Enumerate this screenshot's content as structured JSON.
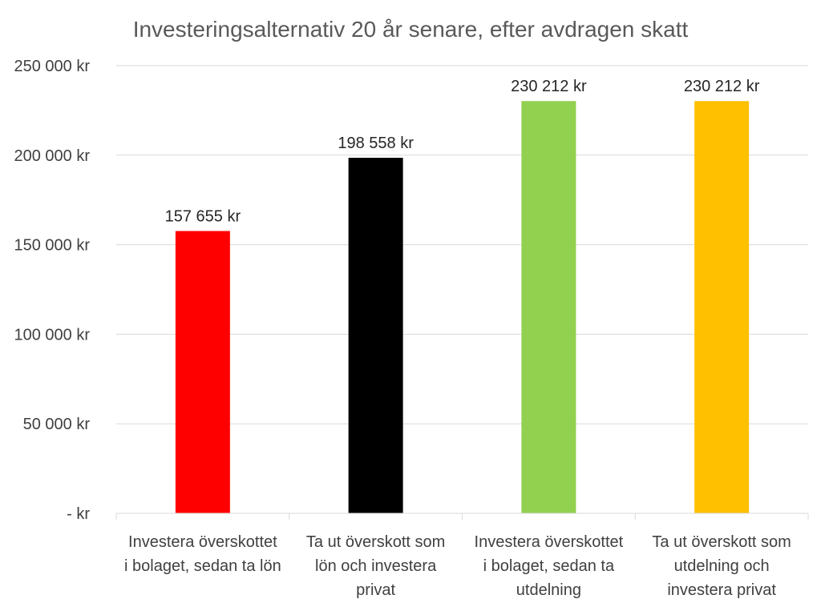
{
  "chart_data": {
    "type": "bar",
    "title": "Investeringsalternativ 20 år senare, efter avdragen skatt",
    "xlabel": "",
    "ylabel": "",
    "ylim": [
      0,
      250000
    ],
    "yticks": [
      0,
      50000,
      100000,
      150000,
      200000,
      250000
    ],
    "ytick_labels": [
      "-   kr",
      "50 000 kr",
      "100 000 kr",
      "150 000 kr",
      "200 000 kr",
      "250 000 kr"
    ],
    "grid": true,
    "legend": "none",
    "categories": [
      [
        "Investera överskottet",
        "i bolaget, sedan ta lön"
      ],
      [
        "Ta ut överskott som",
        "lön och investera",
        "privat"
      ],
      [
        "Investera överskottet",
        "i bolaget, sedan ta",
        "utdelning"
      ],
      [
        "Ta ut överskott som",
        "utdelning och",
        "investera privat"
      ]
    ],
    "values": [
      157655,
      198558,
      230212,
      230212
    ],
    "data_labels": [
      "157 655 kr",
      "198 558 kr",
      "230 212 kr",
      "230 212 kr"
    ],
    "colors": [
      "#ff0000",
      "#000000",
      "#92d050",
      "#ffc000"
    ]
  }
}
